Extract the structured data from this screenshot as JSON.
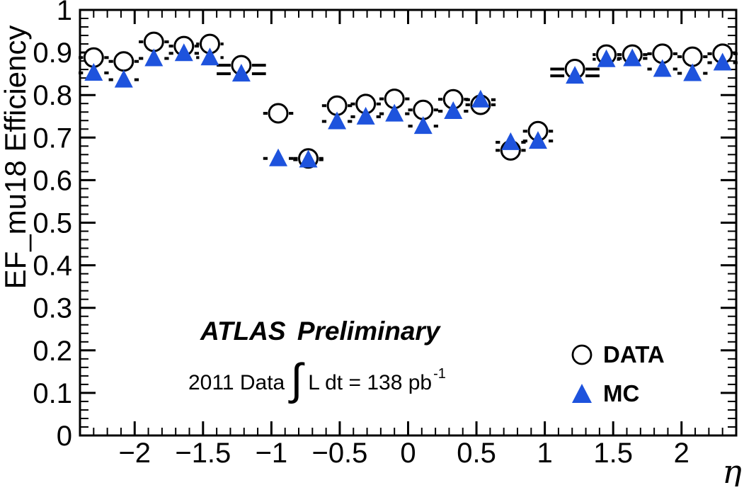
{
  "figure": {
    "background": "#ffffff",
    "atlas_label": {
      "experiment": "ATLAS",
      "status": "Preliminary"
    },
    "luminosity": {
      "prefix": "2011 Data",
      "integral": "∫",
      "body": "L dt = 138 pb",
      "exponent": "-1"
    },
    "legend": [
      {
        "label": "DATA",
        "marker": "open-circle",
        "color": "#000000"
      },
      {
        "label": "MC",
        "marker": "filled-triangle",
        "color": "#1e53dd"
      }
    ]
  },
  "chart_data": {
    "type": "scatter",
    "title": "",
    "xlabel": "η",
    "ylabel": "EF_mu18 Efficiency",
    "xlim": [
      -2.4,
      2.4
    ],
    "ylim": [
      0,
      1
    ],
    "grid": false,
    "legend_position": "inside-bottom-right",
    "x": [
      -2.3,
      -2.08,
      -1.86,
      -1.64,
      -1.45,
      -1.22,
      -0.95,
      -0.73,
      -0.52,
      -0.31,
      -0.1,
      0.11,
      0.33,
      0.53,
      0.75,
      0.95,
      1.22,
      1.45,
      1.64,
      1.86,
      2.08,
      2.3
    ],
    "xerr": [
      0.11,
      0.11,
      0.11,
      0.11,
      0.1,
      0.18,
      0.11,
      0.11,
      0.11,
      0.11,
      0.11,
      0.11,
      0.11,
      0.11,
      0.11,
      0.11,
      0.18,
      0.1,
      0.11,
      0.11,
      0.11,
      0.11
    ],
    "series": [
      {
        "name": "DATA",
        "marker": "open-circle",
        "color": "#000000",
        "values": [
          0.888,
          0.879,
          0.925,
          0.915,
          0.92,
          0.87,
          0.757,
          0.651,
          0.775,
          0.779,
          0.791,
          0.765,
          0.79,
          0.777,
          0.67,
          0.715,
          0.861,
          0.895,
          0.895,
          0.897,
          0.89,
          0.897
        ]
      },
      {
        "name": "MC",
        "marker": "filled-triangle",
        "color": "#1e53dd",
        "values": [
          0.852,
          0.836,
          0.886,
          0.898,
          0.888,
          0.85,
          0.651,
          0.648,
          0.738,
          0.749,
          0.756,
          0.727,
          0.762,
          0.789,
          0.689,
          0.692,
          0.845,
          0.884,
          0.886,
          0.861,
          0.851,
          0.876
        ]
      }
    ],
    "xticks": {
      "values": [
        -2,
        -1.5,
        -1,
        -0.5,
        0,
        0.5,
        1,
        1.5,
        2
      ],
      "labels": [
        "−2",
        "−1.5",
        "−1",
        "−0.5",
        "0",
        "0.5",
        "1",
        "1.5",
        "2"
      ]
    },
    "yticks": {
      "values": [
        0,
        0.1,
        0.2,
        0.3,
        0.4,
        0.5,
        0.6,
        0.7,
        0.8,
        0.9,
        1
      ],
      "labels": [
        "0",
        "0.1",
        "0.2",
        "0.3",
        "0.4",
        "0.5",
        "0.6",
        "0.7",
        "0.8",
        "0.9",
        "1"
      ]
    },
    "x_minor_step": 0.1,
    "y_minor_step": 0.02
  }
}
